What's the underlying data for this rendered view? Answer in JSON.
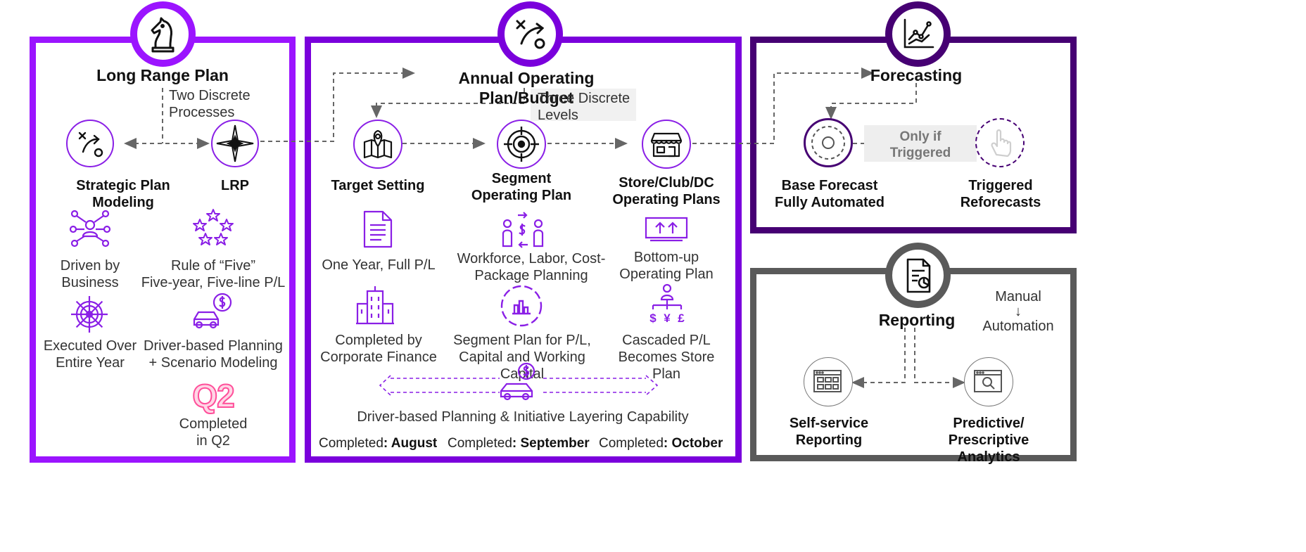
{
  "colors": {
    "purple_bright": "#9b14ff",
    "purple_mid": "#7a00dc",
    "purple_dark": "#460073",
    "grey": "#5a5a5a",
    "icon_purple": "#8a1fe6",
    "q2_pink": "#ff4f9a"
  },
  "long_range": {
    "title": "Long Range Plan",
    "note_line1": "Two Discrete",
    "note_line2": "Processes",
    "node_left": "Strategic Plan Modeling",
    "node_right": "LRP",
    "feat1_line1": "Driven by",
    "feat1_line2": "Business",
    "feat2_line1": "Rule of “Five”",
    "feat2_line2": "Five-year, Five-line P/L",
    "feat3_line1": "Executed Over",
    "feat3_line2": "Entire Year",
    "feat4_line1": "Driver-based Planning",
    "feat4_line2": "+ Scenario Modeling",
    "q2_badge": "Q2",
    "completed_line1": "Completed",
    "completed_line2": "in Q2"
  },
  "annual": {
    "title": "Annual Operating Plan/Budget",
    "note_line1": "Three Discrete",
    "note_line2": "Levels",
    "node1": "Target Setting",
    "node2_line1": "Segment",
    "node2_line2": "Operating Plan",
    "node3_line1": "Store/Club/DC",
    "node3_line2": "Operating Plans",
    "c1r1": "One Year, Full P/L",
    "c2r1_line1": "Workforce, Labor, Cost-",
    "c2r1_line2": "Package Planning",
    "c3r1_line1": "Bottom-up",
    "c3r1_line2": "Operating Plan",
    "c1r2_line1": "Completed by",
    "c1r2_line2": "Corporate Finance",
    "c2r2_line1": "Segment Plan for P/L,",
    "c2r2_line2": "Capital and Working Capital",
    "c3r2_line1": "Cascaded P/L",
    "c3r2_line2": "Becomes Store Plan",
    "driver_caption": "Driver-based Planning & Initiative Layering Capability",
    "completed_prefix": "Completed",
    "completed1": ": August",
    "completed2": ": September",
    "completed3": ": October"
  },
  "forecasting": {
    "title": "Forecasting",
    "condition_line1": "Only if",
    "condition_line2": "Triggered",
    "node1_line1": "Base Forecast",
    "node1_line2": "Fully Automated",
    "node2_line1": "Triggered",
    "node2_line2": "Reforecasts"
  },
  "reporting": {
    "title": "Reporting",
    "manual": "Manual",
    "arrow": "↓",
    "automation": "Automation",
    "node1_line1": "Self-service",
    "node1_line2": "Reporting",
    "node2_line1": "Predictive/",
    "node2_line2": "Prescriptive Analytics"
  },
  "icons": {
    "chess_knight": "chess-knight-icon",
    "strategy_play": "strategy-play-icon",
    "line_chart": "line-chart-icon",
    "report_doc": "report-document-icon"
  }
}
